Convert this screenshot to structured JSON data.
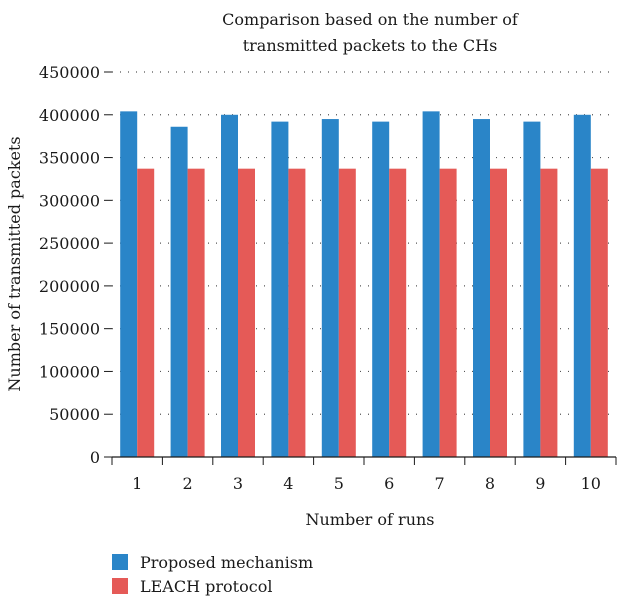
{
  "chart_data": {
    "type": "bar",
    "title_lines": [
      "Comparison based on the number of",
      "transmitted packets to the CHs"
    ],
    "xlabel": "Number of runs",
    "ylabel": "Number of transmitted packets",
    "categories": [
      "1",
      "2",
      "3",
      "4",
      "5",
      "6",
      "7",
      "8",
      "9",
      "10"
    ],
    "ylim": [
      0,
      450000
    ],
    "yticks": [
      "0",
      "50000",
      "100000",
      "150000",
      "200000",
      "250000",
      "300000",
      "350000",
      "400000",
      "450000"
    ],
    "grid": "horizontal dotted",
    "legend_position": "bottom-left",
    "series": [
      {
        "name": "Proposed mechanism",
        "color": "#2a85c8",
        "values": [
          404000,
          386000,
          400000,
          392000,
          395000,
          392000,
          404000,
          395000,
          392000,
          400000
        ]
      },
      {
        "name": "LEACH protocol",
        "color": "#e55a57",
        "values": [
          337000,
          337000,
          337000,
          337000,
          337000,
          337000,
          337000,
          337000,
          337000,
          337000
        ]
      }
    ]
  }
}
